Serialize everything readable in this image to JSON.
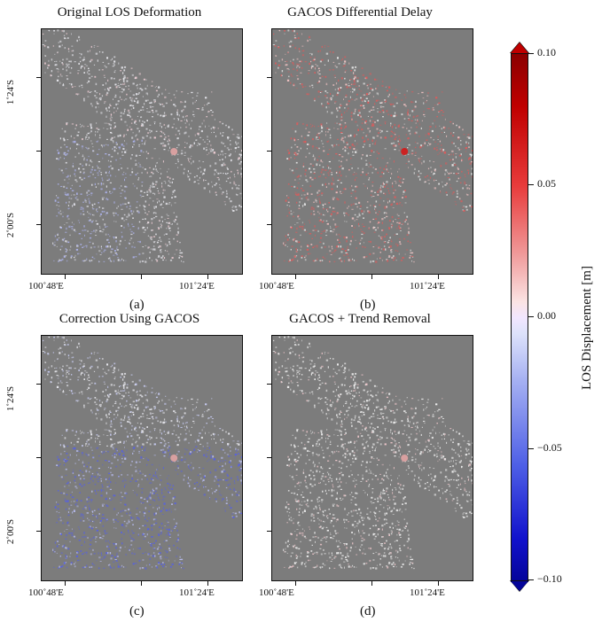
{
  "panels": [
    {
      "title": "Original LOS Deformation",
      "letter": "(a)"
    },
    {
      "title": "GACOS Differential Delay",
      "letter": "(b)"
    },
    {
      "title": "Correction Using GACOS",
      "letter": "(c)"
    },
    {
      "title": "GACOS + Trend Removal",
      "letter": "(d)"
    }
  ],
  "axes": {
    "lon_ticks": [
      "100˚48'E",
      "101˚24'E"
    ],
    "lat_ticks": [
      "1˚24'S",
      "2˚00'S"
    ]
  },
  "colorbar": {
    "title": "LOS Displacement [m]",
    "ticks": [
      "0.10",
      "0.05",
      "0.00",
      "−0.05",
      "−0.10"
    ],
    "max_color": "#c00000",
    "mid_color": "#f2e6ff",
    "min_color": "#05059a"
  },
  "colors": {
    "background_gray": "#7c7c7c",
    "uplift_red": "#e23a3a",
    "subsidence_blue": "#4a55e6"
  }
}
